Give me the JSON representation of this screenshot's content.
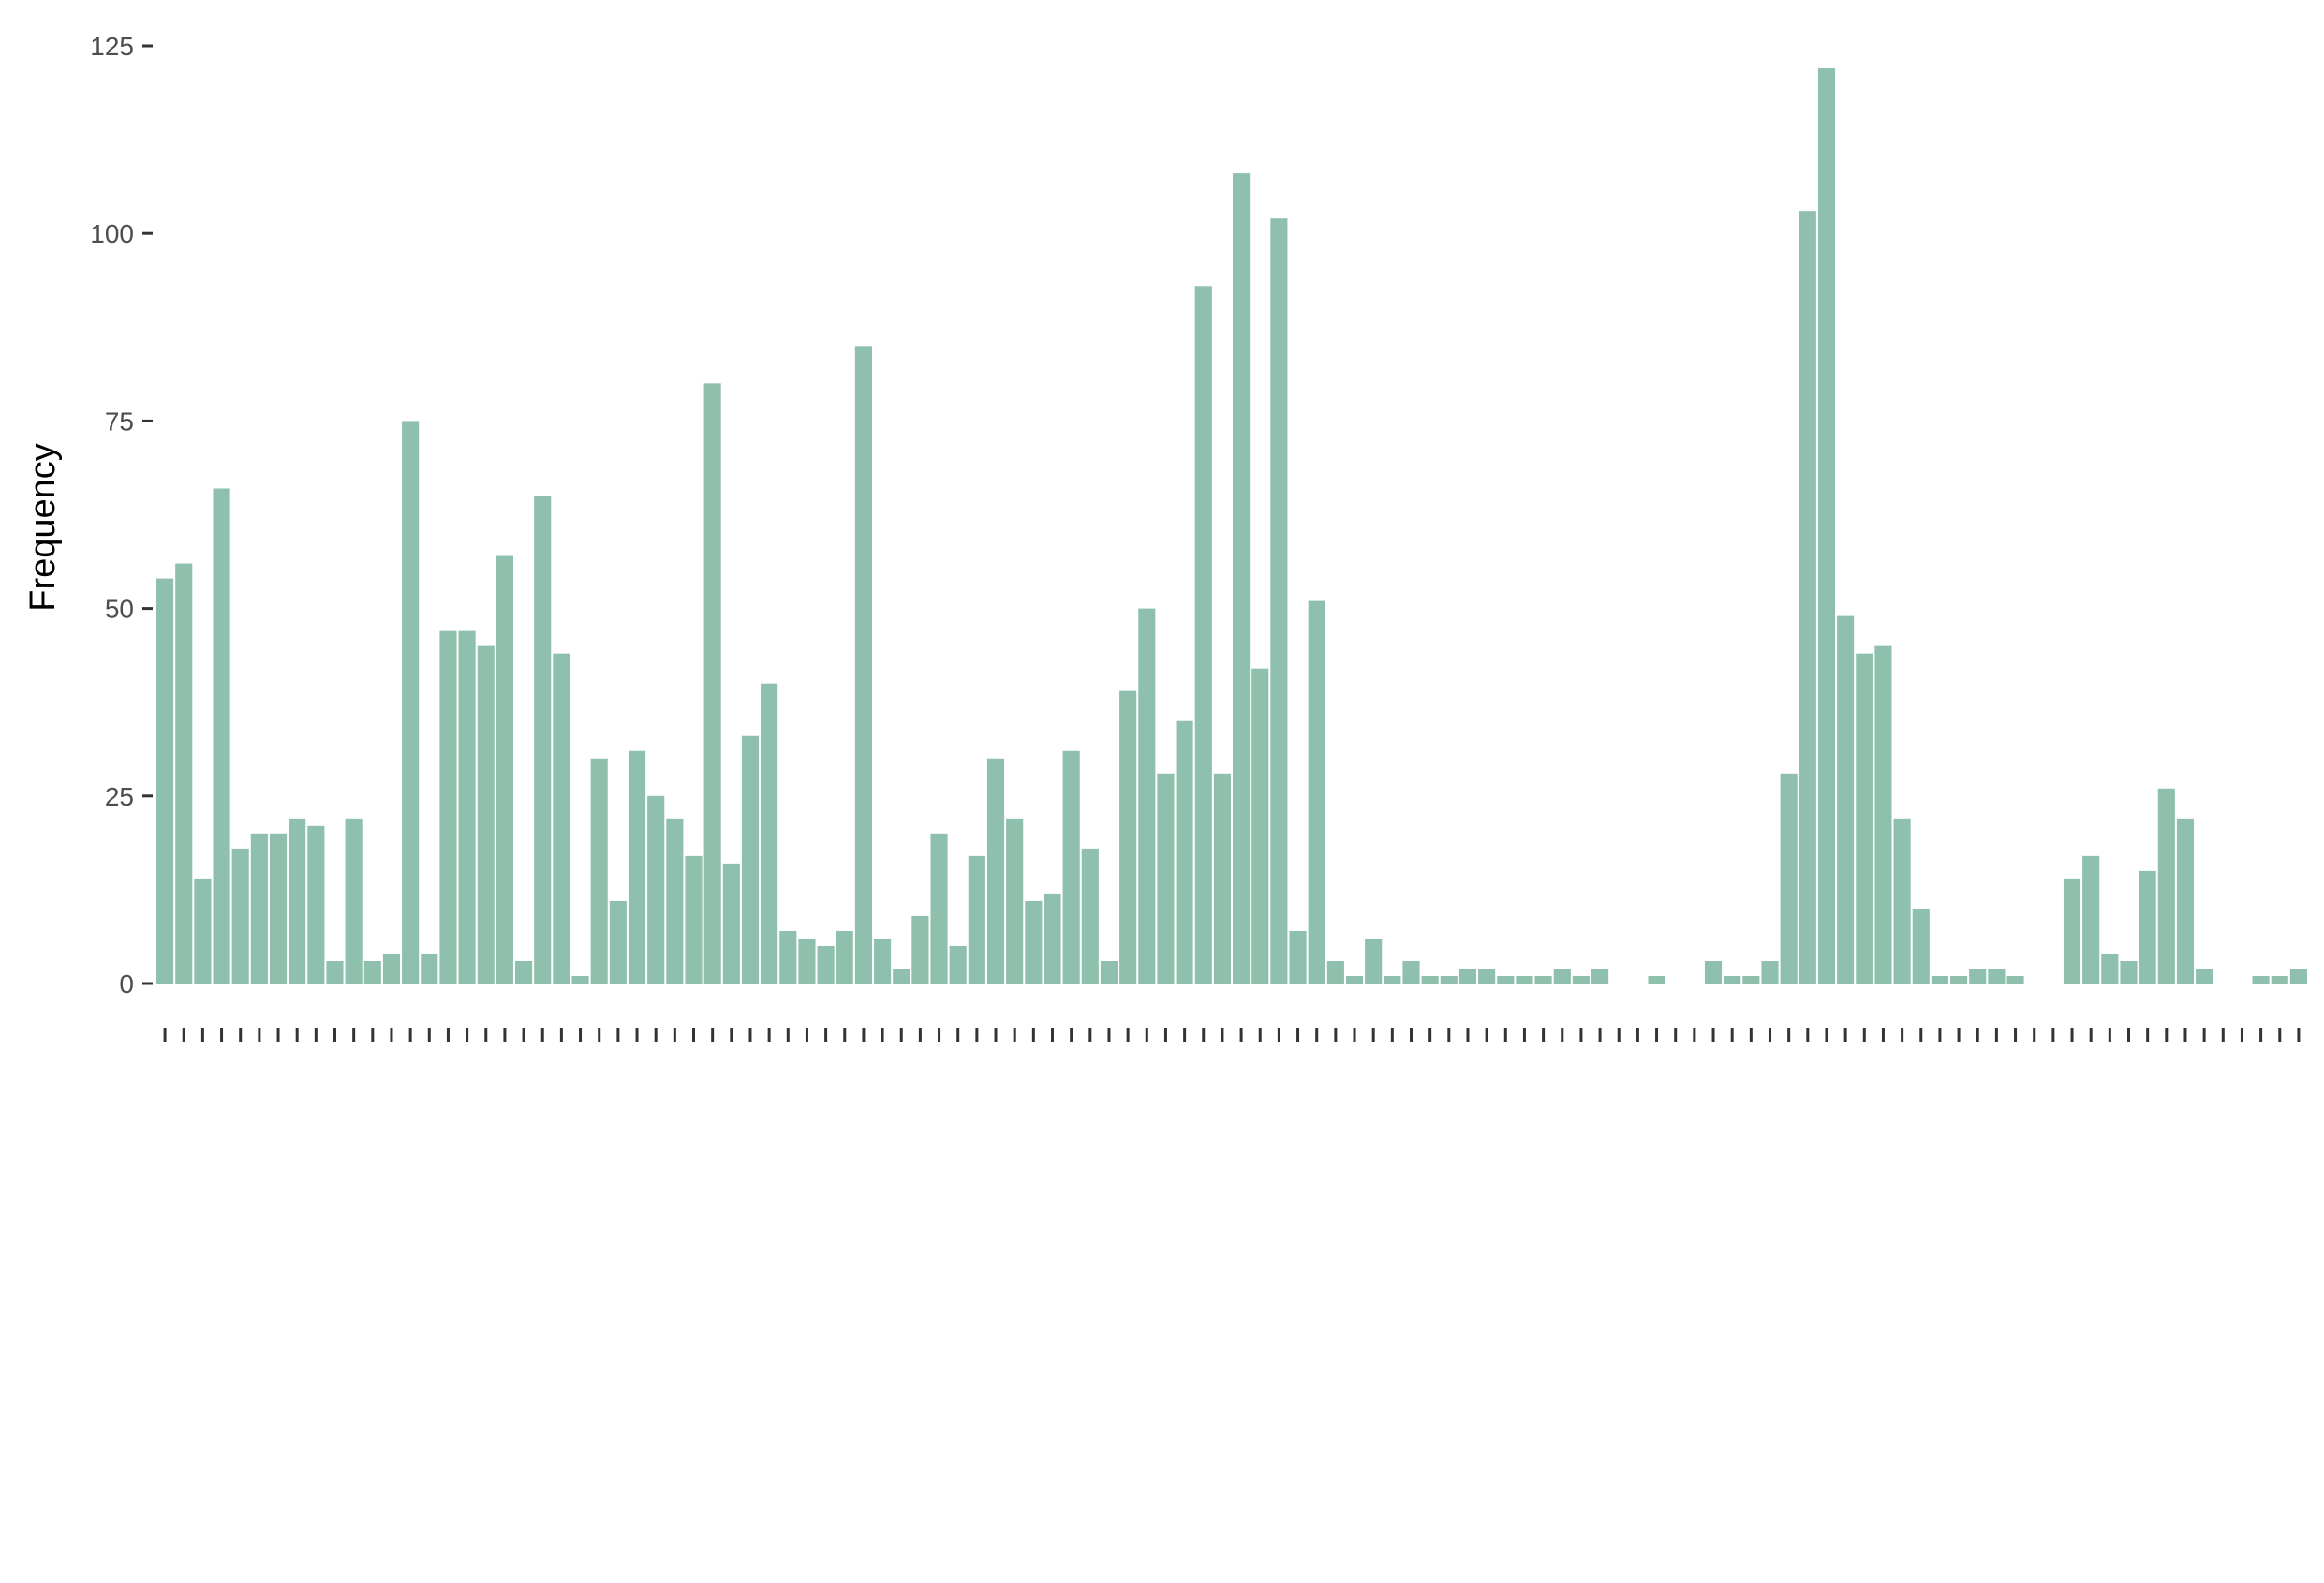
{
  "chart_data": {
    "type": "bar",
    "title": "",
    "xlabel": "",
    "ylabel": "Frequency",
    "ylim": [
      0,
      125
    ],
    "yticks": [
      0,
      25,
      50,
      75,
      100,
      125
    ],
    "grid": false,
    "legend": "none",
    "bar_color": "#8fc0ad",
    "values": [
      54,
      56,
      14,
      66,
      18,
      20,
      20,
      22,
      21,
      3,
      22,
      3,
      4,
      75,
      4,
      47,
      47,
      45,
      57,
      3,
      65,
      44,
      1,
      30,
      11,
      31,
      25,
      22,
      17,
      80,
      16,
      33,
      40,
      7,
      6,
      5,
      7,
      85,
      6,
      2,
      9,
      20,
      5,
      17,
      30,
      22,
      11,
      12,
      31,
      18,
      3,
      39,
      50,
      28,
      35,
      93,
      28,
      108,
      42,
      102,
      7,
      51,
      3,
      1,
      6,
      1,
      3,
      1,
      1,
      2,
      2,
      1,
      1,
      1,
      2,
      1,
      2,
      0,
      0,
      1,
      0,
      0,
      3,
      1,
      1,
      3,
      28,
      103,
      122,
      49,
      44,
      45,
      22,
      10,
      1,
      1,
      2,
      2,
      1,
      0,
      0,
      14,
      17,
      4,
      3,
      15,
      26,
      22,
      2,
      0,
      0,
      1,
      1,
      2
    ]
  }
}
